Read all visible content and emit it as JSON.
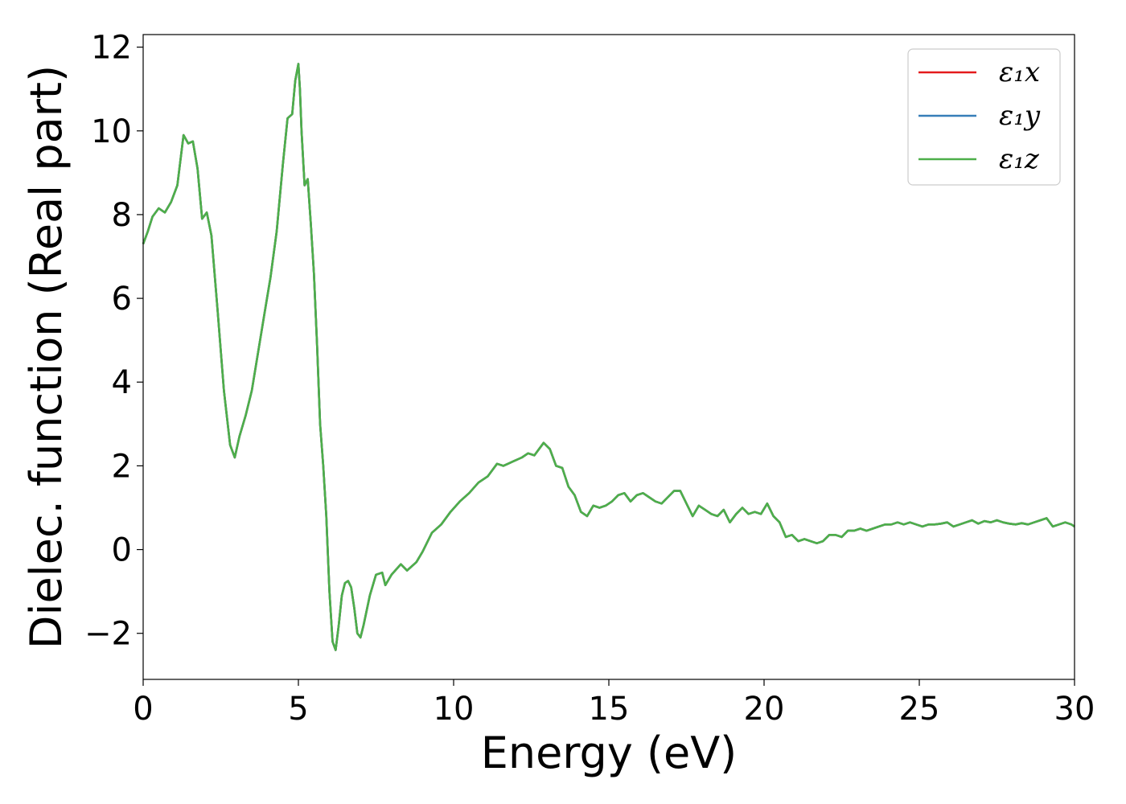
{
  "chart_data": {
    "type": "line",
    "title": "",
    "xlabel": "Energy (eV)",
    "ylabel": "Dielec. function (Real part)",
    "xlim": [
      0,
      30
    ],
    "ylim": [
      -3.1,
      12.3
    ],
    "xticks": [
      0,
      5,
      10,
      15,
      20,
      25,
      30
    ],
    "xtick_labels": [
      "0",
      "5",
      "10",
      "15",
      "20",
      "25",
      "30"
    ],
    "yticks": [
      -2,
      0,
      2,
      4,
      6,
      8,
      10,
      12
    ],
    "ytick_labels": [
      "−2",
      "0",
      "2",
      "4",
      "6",
      "8",
      "10",
      "12"
    ],
    "grid": false,
    "legend_position": "top-right",
    "x": [
      0,
      0.15,
      0.3,
      0.5,
      0.7,
      0.9,
      1.1,
      1.3,
      1.45,
      1.6,
      1.75,
      1.9,
      2.05,
      2.2,
      2.4,
      2.6,
      2.8,
      2.95,
      3.1,
      3.3,
      3.5,
      3.7,
      3.9,
      4.1,
      4.3,
      4.5,
      4.65,
      4.8,
      4.9,
      5.0,
      5.05,
      5.1,
      5.2,
      5.3,
      5.4,
      5.5,
      5.6,
      5.7,
      5.8,
      5.9,
      6.0,
      6.1,
      6.2,
      6.3,
      6.4,
      6.5,
      6.6,
      6.7,
      6.8,
      6.9,
      7.0,
      7.1,
      7.3,
      7.5,
      7.7,
      7.8,
      8.0,
      8.3,
      8.5,
      8.8,
      9.0,
      9.3,
      9.6,
      9.9,
      10.2,
      10.5,
      10.8,
      11.1,
      11.4,
      11.6,
      11.9,
      12.2,
      12.4,
      12.6,
      12.9,
      13.1,
      13.3,
      13.5,
      13.7,
      13.9,
      14.1,
      14.3,
      14.5,
      14.7,
      14.9,
      15.1,
      15.3,
      15.5,
      15.7,
      15.9,
      16.1,
      16.3,
      16.5,
      16.7,
      16.9,
      17.1,
      17.3,
      17.5,
      17.7,
      17.9,
      18.1,
      18.3,
      18.5,
      18.7,
      18.9,
      19.1,
      19.3,
      19.5,
      19.7,
      19.9,
      20.1,
      20.3,
      20.5,
      20.7,
      20.9,
      21.1,
      21.3,
      21.5,
      21.7,
      21.9,
      22.1,
      22.3,
      22.5,
      22.7,
      22.9,
      23.1,
      23.3,
      23.5,
      23.7,
      23.9,
      24.1,
      24.3,
      24.5,
      24.7,
      24.9,
      25.1,
      25.3,
      25.5,
      25.7,
      25.9,
      26.1,
      26.3,
      26.5,
      26.7,
      26.9,
      27.1,
      27.3,
      27.5,
      27.7,
      27.9,
      28.1,
      28.3,
      28.5,
      28.7,
      28.9,
      29.1,
      29.3,
      29.5,
      29.7,
      29.9,
      30.0
    ],
    "series": [
      {
        "name": "ε₁x",
        "color": "#e41a1c"
      },
      {
        "name": "ε₁y",
        "color": "#377eb8"
      },
      {
        "name": "ε₁z",
        "color": "#4daf4a"
      }
    ],
    "y": [
      7.3,
      7.6,
      7.95,
      8.15,
      8.05,
      8.3,
      8.7,
      9.9,
      9.7,
      9.75,
      9.1,
      7.9,
      8.05,
      7.5,
      5.7,
      3.8,
      2.5,
      2.2,
      2.7,
      3.2,
      3.8,
      4.7,
      5.6,
      6.5,
      7.6,
      9.2,
      10.3,
      10.4,
      11.2,
      11.6,
      11.0,
      10.0,
      8.7,
      8.85,
      7.8,
      6.6,
      4.9,
      3.0,
      2.0,
      0.8,
      -1.0,
      -2.2,
      -2.4,
      -1.8,
      -1.1,
      -0.8,
      -0.75,
      -0.9,
      -1.4,
      -2.0,
      -2.1,
      -1.8,
      -1.1,
      -0.6,
      -0.55,
      -0.85,
      -0.6,
      -0.35,
      -0.5,
      -0.3,
      -0.05,
      0.4,
      0.6,
      0.9,
      1.15,
      1.35,
      1.6,
      1.75,
      2.05,
      2.0,
      2.1,
      2.2,
      2.3,
      2.25,
      2.55,
      2.4,
      2.0,
      1.95,
      1.5,
      1.3,
      0.9,
      0.8,
      1.05,
      1.0,
      1.05,
      1.15,
      1.3,
      1.35,
      1.15,
      1.3,
      1.35,
      1.25,
      1.15,
      1.1,
      1.25,
      1.4,
      1.4,
      1.1,
      0.8,
      1.05,
      0.95,
      0.85,
      0.8,
      0.95,
      0.65,
      0.85,
      1.0,
      0.85,
      0.9,
      0.85,
      1.1,
      0.8,
      0.65,
      0.3,
      0.35,
      0.2,
      0.25,
      0.2,
      0.15,
      0.2,
      0.35,
      0.35,
      0.3,
      0.45,
      0.45,
      0.5,
      0.45,
      0.5,
      0.55,
      0.6,
      0.6,
      0.65,
      0.6,
      0.65,
      0.6,
      0.55,
      0.6,
      0.6,
      0.62,
      0.65,
      0.55,
      0.6,
      0.65,
      0.7,
      0.62,
      0.68,
      0.65,
      0.7,
      0.65,
      0.62,
      0.6,
      0.63,
      0.6,
      0.65,
      0.7,
      0.75,
      0.55,
      0.6,
      0.65,
      0.6,
      0.55
    ]
  }
}
